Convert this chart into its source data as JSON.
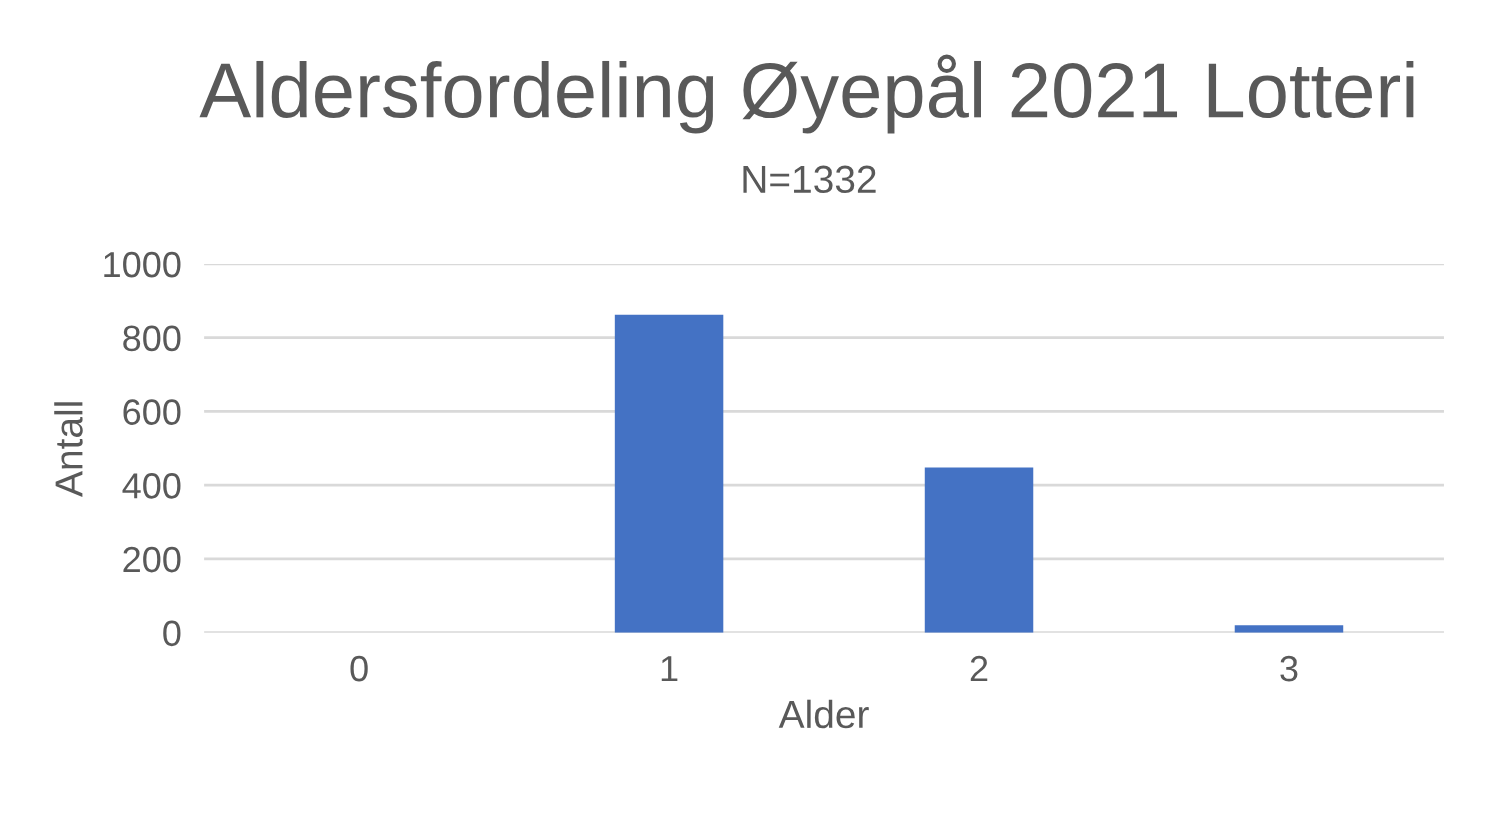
{
  "chart_data": {
    "type": "bar",
    "title": "Aldersfordeling Øyepål 2021 Lotteri",
    "subtitle": "N=1332",
    "xlabel": "Alder",
    "ylabel": "Antall",
    "categories": [
      "0",
      "1",
      "2",
      "3"
    ],
    "values": [
      0,
      862,
      448,
      20
    ],
    "color": "#4472c4",
    "ylim": [
      0,
      1000
    ],
    "yticks": [
      0,
      200,
      400,
      600,
      800,
      1000
    ],
    "grid": "y"
  }
}
